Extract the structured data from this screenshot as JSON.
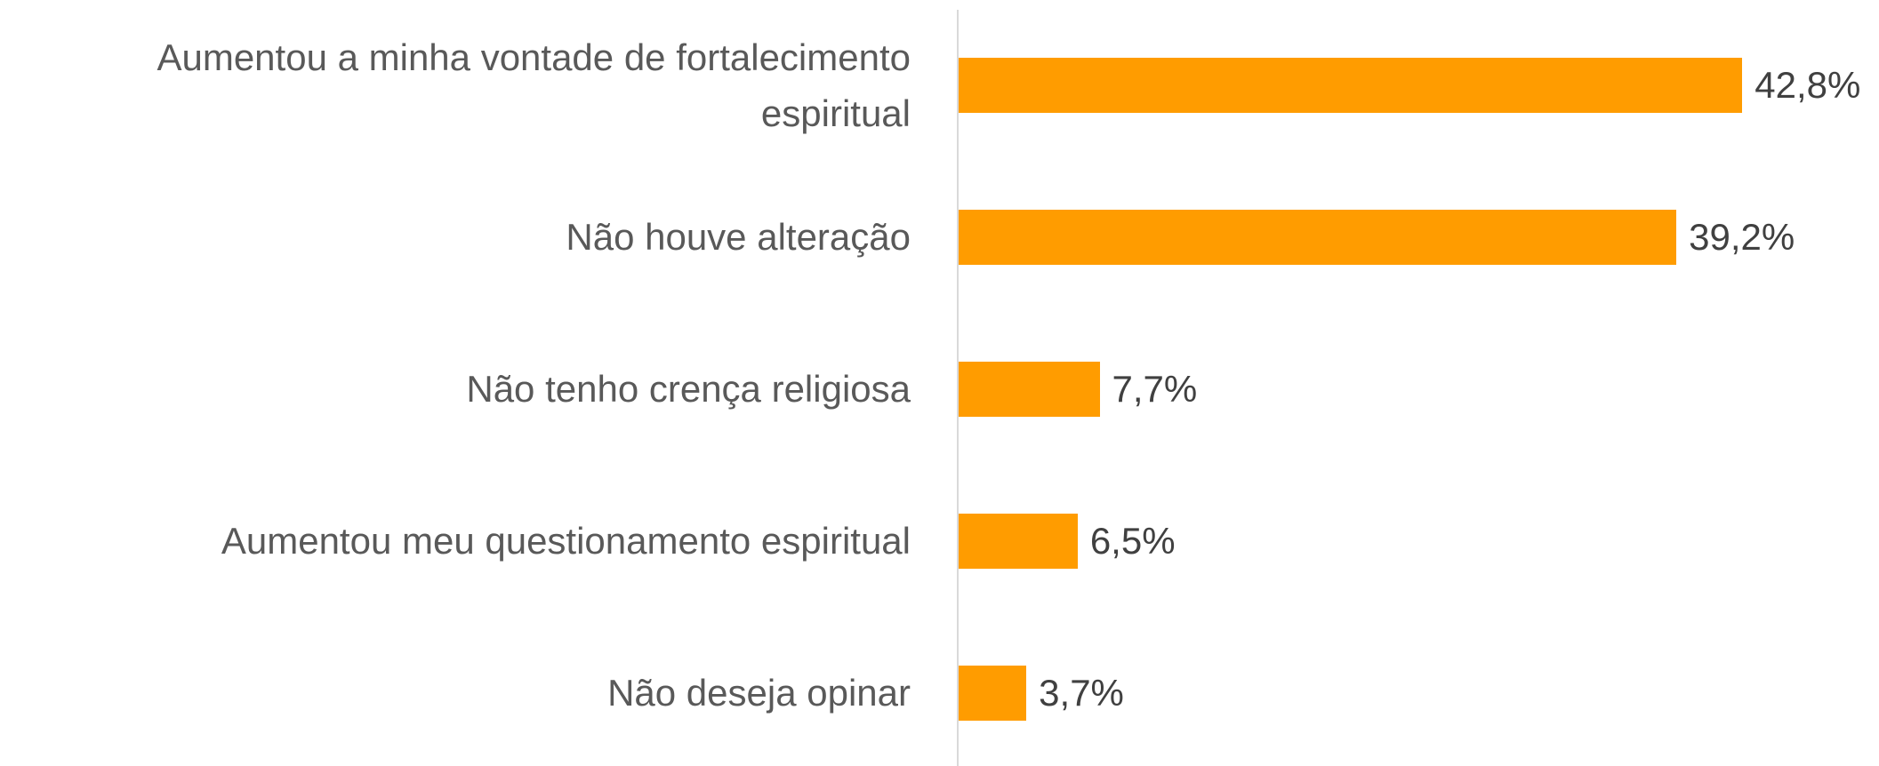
{
  "chart_data": {
    "type": "bar",
    "orientation": "horizontal",
    "categories": [
      "Aumentou a minha vontade de fortalecimento espiritual",
      "Não houve alteração",
      "Não tenho crença religiosa",
      "Aumentou meu questionamento espiritual",
      "Não deseja opinar"
    ],
    "values": [
      42.8,
      39.2,
      7.7,
      6.5,
      3.7
    ],
    "value_labels": [
      "42,8%",
      "39,2%",
      "7,7%",
      "6,5%",
      "3,7%"
    ],
    "color": "#ff9c00"
  }
}
